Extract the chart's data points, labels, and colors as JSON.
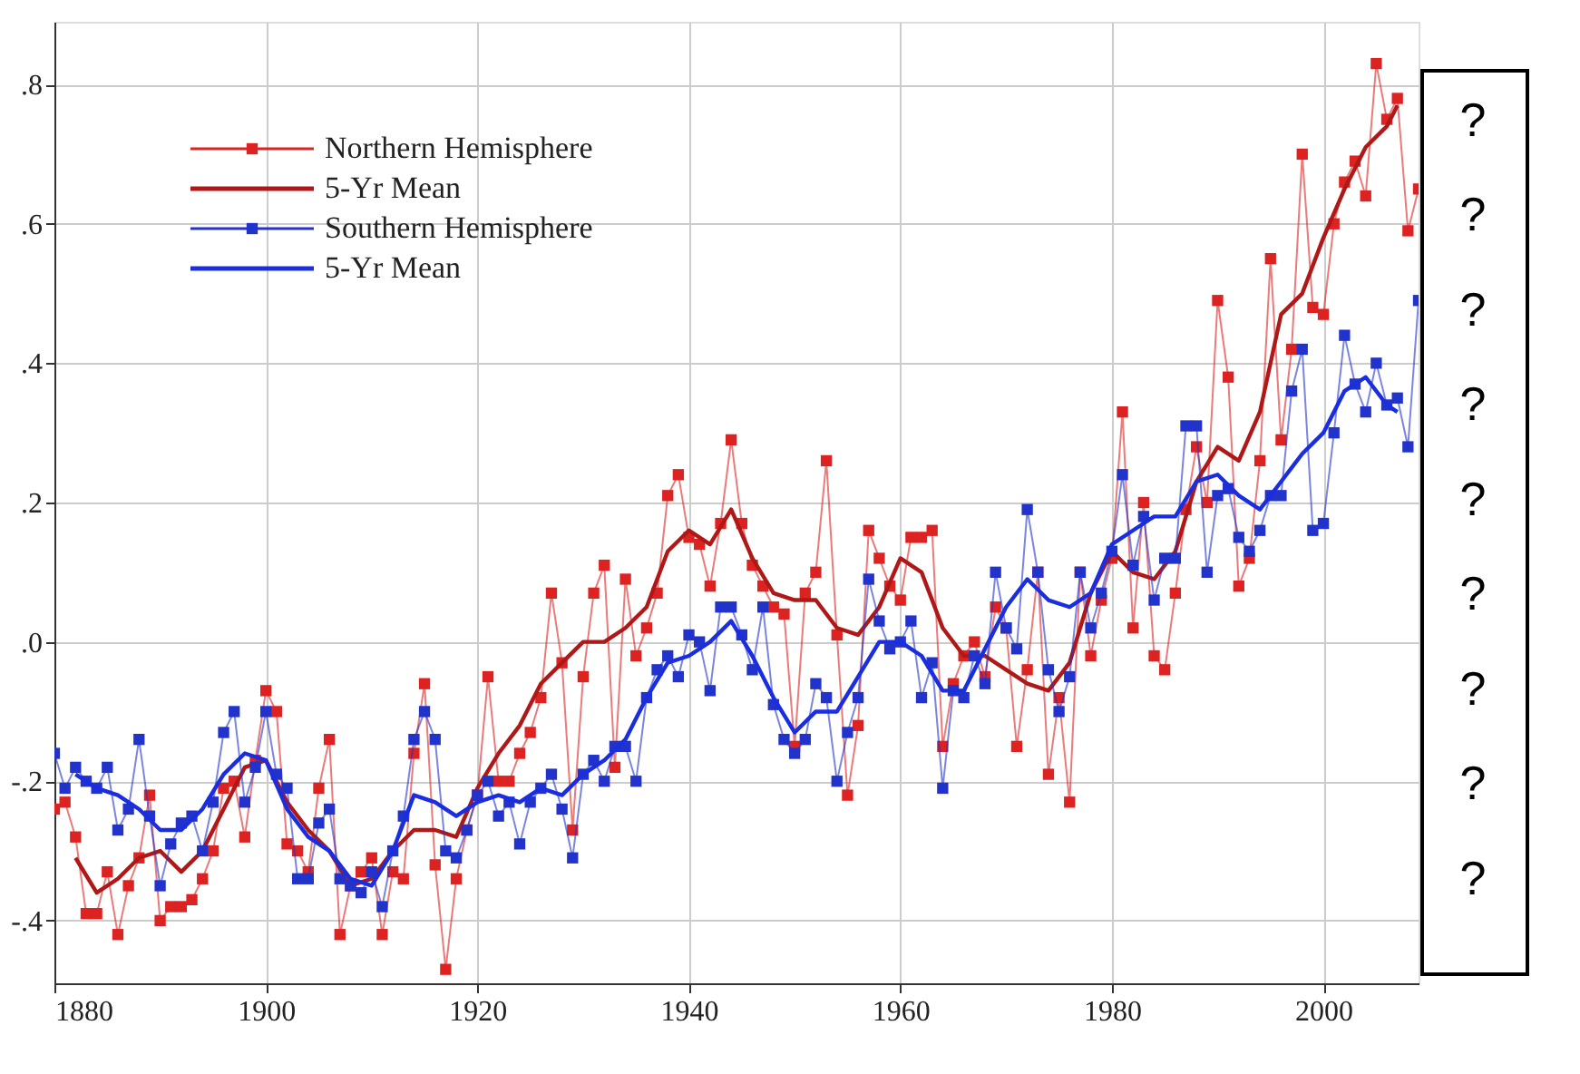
{
  "chart_data": {
    "type": "line",
    "xlim": [
      1880,
      2009
    ],
    "ylim": [
      -0.49,
      0.89
    ],
    "xticks": [
      1880,
      1900,
      1920,
      1940,
      1960,
      1980,
      2000
    ],
    "yticks": [
      {
        "value": 0.8,
        "label": ".8"
      },
      {
        "value": 0.6,
        "label": ".6"
      },
      {
        "value": 0.4,
        "label": ".4"
      },
      {
        "value": 0.2,
        "label": ".2"
      },
      {
        "value": 0,
        "label": ".0"
      },
      {
        "value": -0.2,
        "label": "-.2"
      },
      {
        "value": -0.4,
        "label": "-.4"
      }
    ],
    "grid": true,
    "legend": "top left",
    "annotations": [
      "?",
      "?",
      "?",
      "?",
      "?",
      "?",
      "?",
      "?",
      "?"
    ],
    "series": [
      {
        "name": "Northern Hemisphere",
        "color": "#dd2222",
        "marker": "square",
        "x": [
          1880,
          1881,
          1882,
          1883,
          1884,
          1885,
          1886,
          1887,
          1888,
          1889,
          1890,
          1891,
          1892,
          1893,
          1894,
          1895,
          1896,
          1897,
          1898,
          1899,
          1900,
          1901,
          1902,
          1903,
          1904,
          1905,
          1906,
          1907,
          1908,
          1909,
          1910,
          1911,
          1912,
          1913,
          1914,
          1915,
          1916,
          1917,
          1918,
          1919,
          1920,
          1921,
          1922,
          1923,
          1924,
          1925,
          1926,
          1927,
          1928,
          1929,
          1930,
          1931,
          1932,
          1933,
          1934,
          1935,
          1936,
          1937,
          1938,
          1939,
          1940,
          1941,
          1942,
          1943,
          1944,
          1945,
          1946,
          1947,
          1948,
          1949,
          1950,
          1951,
          1952,
          1953,
          1954,
          1955,
          1956,
          1957,
          1958,
          1959,
          1960,
          1961,
          1962,
          1963,
          1964,
          1965,
          1966,
          1967,
          1968,
          1969,
          1970,
          1971,
          1972,
          1973,
          1974,
          1975,
          1976,
          1977,
          1978,
          1979,
          1980,
          1981,
          1982,
          1983,
          1984,
          1985,
          1986,
          1987,
          1988,
          1989,
          1990,
          1991,
          1992,
          1993,
          1994,
          1995,
          1996,
          1997,
          1998,
          1999,
          2000,
          2001,
          2002,
          2003,
          2004,
          2005,
          2006,
          2007,
          2008,
          2009
        ],
        "values": [
          -0.24,
          -0.23,
          -0.28,
          -0.39,
          -0.39,
          -0.33,
          -0.42,
          -0.35,
          -0.31,
          -0.22,
          -0.4,
          -0.38,
          -0.38,
          -0.37,
          -0.34,
          -0.3,
          -0.21,
          -0.2,
          -0.28,
          -0.17,
          -0.07,
          -0.1,
          -0.29,
          -0.3,
          -0.33,
          -0.21,
          -0.14,
          -0.42,
          -0.35,
          -0.33,
          -0.31,
          -0.42,
          -0.33,
          -0.34,
          -0.16,
          -0.06,
          -0.32,
          -0.47,
          -0.34,
          -0.27,
          -0.22,
          -0.05,
          -0.2,
          -0.2,
          -0.16,
          -0.13,
          -0.08,
          0.07,
          -0.03,
          -0.27,
          -0.05,
          0.07,
          0.11,
          -0.18,
          0.09,
          -0.02,
          0.02,
          0.07,
          0.21,
          0.24,
          0.15,
          0.14,
          0.08,
          0.17,
          0.29,
          0.17,
          0.11,
          0.08,
          0.05,
          0.04,
          -0.15,
          0.07,
          0.1,
          0.26,
          0.01,
          -0.22,
          -0.12,
          0.16,
          0.12,
          0.08,
          0.06,
          0.15,
          0.15,
          0.16,
          -0.15,
          -0.06,
          -0.02,
          0.0,
          -0.05,
          0.05,
          0.02,
          -0.15,
          -0.04,
          0.1,
          -0.19,
          -0.08,
          -0.23,
          0.1,
          -0.02,
          0.06,
          0.12,
          0.33,
          0.02,
          0.2,
          -0.02,
          -0.04,
          0.07,
          0.19,
          0.28,
          0.2,
          0.49,
          0.38,
          0.08,
          0.12,
          0.26,
          0.55,
          0.29,
          0.42,
          0.7,
          0.48,
          0.47,
          0.6,
          0.66,
          0.69,
          0.64,
          0.83,
          0.75,
          0.78,
          0.59,
          0.65
        ]
      },
      {
        "name": "5-Yr Mean",
        "color": "#b01818",
        "marker": "none",
        "x": [
          1882,
          1884,
          1886,
          1888,
          1890,
          1892,
          1894,
          1896,
          1898,
          1900,
          1902,
          1904,
          1906,
          1908,
          1910,
          1912,
          1914,
          1916,
          1918,
          1920,
          1922,
          1924,
          1926,
          1928,
          1930,
          1932,
          1934,
          1936,
          1938,
          1940,
          1942,
          1944,
          1946,
          1948,
          1950,
          1952,
          1954,
          1956,
          1958,
          1960,
          1962,
          1964,
          1966,
          1968,
          1970,
          1972,
          1974,
          1976,
          1978,
          1980,
          1982,
          1984,
          1986,
          1988,
          1990,
          1992,
          1994,
          1996,
          1998,
          2000,
          2002,
          2004,
          2006,
          2007
        ],
        "values": [
          -0.31,
          -0.36,
          -0.34,
          -0.31,
          -0.3,
          -0.33,
          -0.3,
          -0.24,
          -0.18,
          -0.17,
          -0.23,
          -0.27,
          -0.3,
          -0.35,
          -0.34,
          -0.3,
          -0.27,
          -0.27,
          -0.28,
          -0.21,
          -0.16,
          -0.12,
          -0.06,
          -0.03,
          0.0,
          0.0,
          0.02,
          0.05,
          0.13,
          0.16,
          0.14,
          0.19,
          0.12,
          0.07,
          0.06,
          0.06,
          0.02,
          0.01,
          0.05,
          0.12,
          0.1,
          0.02,
          -0.02,
          -0.02,
          -0.04,
          -0.06,
          -0.07,
          -0.03,
          0.07,
          0.13,
          0.1,
          0.09,
          0.13,
          0.23,
          0.28,
          0.26,
          0.33,
          0.47,
          0.5,
          0.58,
          0.65,
          0.71,
          0.74,
          0.77
        ]
      },
      {
        "name": "Southern Hemisphere",
        "color": "#2233cc",
        "marker": "square",
        "x": [
          1880,
          1881,
          1882,
          1883,
          1884,
          1885,
          1886,
          1887,
          1888,
          1889,
          1890,
          1891,
          1892,
          1893,
          1894,
          1895,
          1896,
          1897,
          1898,
          1899,
          1900,
          1901,
          1902,
          1903,
          1904,
          1905,
          1906,
          1907,
          1908,
          1909,
          1910,
          1911,
          1912,
          1913,
          1914,
          1915,
          1916,
          1917,
          1918,
          1919,
          1920,
          1921,
          1922,
          1923,
          1924,
          1925,
          1926,
          1927,
          1928,
          1929,
          1930,
          1931,
          1932,
          1933,
          1934,
          1935,
          1936,
          1937,
          1938,
          1939,
          1940,
          1941,
          1942,
          1943,
          1944,
          1945,
          1946,
          1947,
          1948,
          1949,
          1950,
          1951,
          1952,
          1953,
          1954,
          1955,
          1956,
          1957,
          1958,
          1959,
          1960,
          1961,
          1962,
          1963,
          1964,
          1965,
          1966,
          1967,
          1968,
          1969,
          1970,
          1971,
          1972,
          1973,
          1974,
          1975,
          1976,
          1977,
          1978,
          1979,
          1980,
          1981,
          1982,
          1983,
          1984,
          1985,
          1986,
          1987,
          1988,
          1989,
          1990,
          1991,
          1992,
          1993,
          1994,
          1995,
          1996,
          1997,
          1998,
          1999,
          2000,
          2001,
          2002,
          2003,
          2004,
          2005,
          2006,
          2007,
          2008,
          2009
        ],
        "values": [
          -0.16,
          -0.21,
          -0.18,
          -0.2,
          -0.21,
          -0.18,
          -0.27,
          -0.24,
          -0.14,
          -0.25,
          -0.35,
          -0.29,
          -0.26,
          -0.25,
          -0.3,
          -0.23,
          -0.13,
          -0.1,
          -0.23,
          -0.18,
          -0.1,
          -0.19,
          -0.21,
          -0.34,
          -0.34,
          -0.26,
          -0.24,
          -0.34,
          -0.35,
          -0.36,
          -0.33,
          -0.38,
          -0.3,
          -0.25,
          -0.14,
          -0.1,
          -0.14,
          -0.3,
          -0.31,
          -0.27,
          -0.22,
          -0.2,
          -0.25,
          -0.23,
          -0.29,
          -0.23,
          -0.21,
          -0.19,
          -0.24,
          -0.31,
          -0.19,
          -0.17,
          -0.2,
          -0.15,
          -0.15,
          -0.2,
          -0.08,
          -0.04,
          -0.02,
          -0.05,
          0.01,
          0.0,
          -0.07,
          0.05,
          0.05,
          0.01,
          -0.04,
          0.05,
          -0.09,
          -0.14,
          -0.16,
          -0.14,
          -0.06,
          -0.08,
          -0.2,
          -0.13,
          -0.08,
          0.09,
          0.03,
          -0.01,
          0.0,
          0.03,
          -0.08,
          -0.03,
          -0.21,
          -0.07,
          -0.08,
          -0.02,
          -0.06,
          0.1,
          0.02,
          -0.01,
          0.19,
          0.1,
          -0.04,
          -0.1,
          -0.05,
          0.1,
          0.02,
          0.07,
          0.13,
          0.24,
          0.11,
          0.18,
          0.06,
          0.12,
          0.12,
          0.31,
          0.31,
          0.1,
          0.21,
          0.22,
          0.15,
          0.13,
          0.16,
          0.21,
          0.21,
          0.36,
          0.42,
          0.16,
          0.17,
          0.3,
          0.44,
          0.37,
          0.33,
          0.4,
          0.34,
          0.35,
          0.28,
          0.49
        ]
      },
      {
        "name": "5-Yr Mean",
        "color": "#1a2ee0",
        "marker": "none",
        "x": [
          1882,
          1884,
          1886,
          1888,
          1890,
          1892,
          1894,
          1896,
          1898,
          1900,
          1902,
          1904,
          1906,
          1908,
          1910,
          1912,
          1914,
          1916,
          1918,
          1920,
          1922,
          1924,
          1926,
          1928,
          1930,
          1932,
          1934,
          1936,
          1938,
          1940,
          1942,
          1944,
          1946,
          1948,
          1950,
          1952,
          1954,
          1956,
          1958,
          1960,
          1962,
          1964,
          1966,
          1968,
          1970,
          1972,
          1974,
          1976,
          1978,
          1980,
          1982,
          1984,
          1986,
          1988,
          1990,
          1992,
          1994,
          1996,
          1998,
          2000,
          2002,
          2004,
          2006,
          2007
        ],
        "values": [
          -0.19,
          -0.21,
          -0.22,
          -0.24,
          -0.27,
          -0.27,
          -0.24,
          -0.19,
          -0.16,
          -0.17,
          -0.24,
          -0.28,
          -0.3,
          -0.34,
          -0.35,
          -0.3,
          -0.22,
          -0.23,
          -0.25,
          -0.23,
          -0.22,
          -0.23,
          -0.21,
          -0.22,
          -0.19,
          -0.17,
          -0.14,
          -0.08,
          -0.03,
          -0.02,
          0.0,
          0.03,
          -0.02,
          -0.08,
          -0.13,
          -0.1,
          -0.1,
          -0.05,
          0.0,
          0.0,
          -0.02,
          -0.07,
          -0.07,
          -0.01,
          0.05,
          0.09,
          0.06,
          0.05,
          0.07,
          0.14,
          0.16,
          0.18,
          0.18,
          0.23,
          0.24,
          0.21,
          0.19,
          0.23,
          0.27,
          0.3,
          0.36,
          0.38,
          0.34,
          0.33
        ]
      }
    ]
  }
}
